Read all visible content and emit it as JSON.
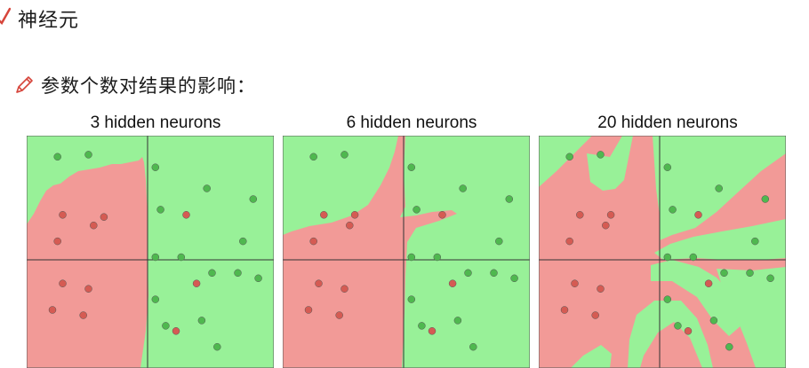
{
  "heading": {
    "title": "神经元"
  },
  "subheading": {
    "text": "参数个数对结果的影响："
  },
  "colors": {
    "red_region": "#f29a97",
    "green_region": "#98f198",
    "red_point": "#d55b53",
    "green_point": "#4fb84f"
  },
  "chart_data": [
    {
      "type": "scatter",
      "title": "3 hidden neurons",
      "red_points": [
        [
          -0.45,
          0.33
        ],
        [
          -0.85,
          0.35
        ],
        [
          -0.55,
          0.25
        ],
        [
          -0.9,
          0.1
        ],
        [
          -0.85,
          -0.3
        ],
        [
          -0.6,
          -0.35
        ],
        [
          -0.95,
          -0.55
        ],
        [
          -0.65,
          -0.6
        ],
        [
          0.35,
          0.35
        ],
        [
          0.45,
          -0.3
        ],
        [
          0.25,
          -0.75
        ]
      ],
      "green_points": [
        [
          -0.9,
          0.9
        ],
        [
          -0.6,
          0.92
        ],
        [
          0.05,
          0.8
        ],
        [
          0.55,
          0.6
        ],
        [
          0.1,
          0.4
        ],
        [
          1.0,
          0.5
        ],
        [
          0.9,
          0.1
        ],
        [
          0.05,
          -0.05
        ],
        [
          0.3,
          -0.05
        ],
        [
          0.6,
          -0.2
        ],
        [
          1.05,
          -0.25
        ],
        [
          0.85,
          -0.2
        ],
        [
          0.05,
          -0.45
        ],
        [
          0.15,
          -0.7
        ],
        [
          0.5,
          -0.65
        ],
        [
          0.65,
          -0.9
        ]
      ]
    },
    {
      "type": "scatter",
      "title": "6 hidden neurons",
      "red_points": [
        [
          -0.5,
          0.35
        ],
        [
          -0.8,
          0.35
        ],
        [
          -0.55,
          0.25
        ],
        [
          -0.9,
          0.1
        ],
        [
          -0.85,
          -0.3
        ],
        [
          -0.6,
          -0.35
        ],
        [
          -0.95,
          -0.55
        ],
        [
          -0.65,
          -0.6
        ],
        [
          0.35,
          0.35
        ],
        [
          0.45,
          -0.3
        ],
        [
          0.25,
          -0.75
        ]
      ],
      "green_points": [
        [
          -0.9,
          0.9
        ],
        [
          -0.6,
          0.92
        ],
        [
          0.05,
          0.8
        ],
        [
          0.55,
          0.6
        ],
        [
          0.1,
          0.4
        ],
        [
          1.0,
          0.5
        ],
        [
          0.9,
          0.1
        ],
        [
          0.05,
          -0.05
        ],
        [
          0.3,
          -0.05
        ],
        [
          0.6,
          -0.2
        ],
        [
          1.05,
          -0.25
        ],
        [
          0.85,
          -0.2
        ],
        [
          0.05,
          -0.45
        ],
        [
          0.15,
          -0.7
        ],
        [
          0.5,
          -0.65
        ],
        [
          0.65,
          -0.9
        ]
      ]
    },
    {
      "type": "scatter",
      "title": "20 hidden neurons",
      "red_points": [
        [
          -0.5,
          0.35
        ],
        [
          -0.8,
          0.35
        ],
        [
          -0.55,
          0.25
        ],
        [
          -0.9,
          0.1
        ],
        [
          -0.85,
          -0.3
        ],
        [
          -0.6,
          -0.35
        ],
        [
          -0.95,
          -0.55
        ],
        [
          -0.65,
          -0.6
        ],
        [
          0.35,
          0.35
        ],
        [
          0.45,
          -0.3
        ],
        [
          0.25,
          -0.75
        ]
      ],
      "green_points": [
        [
          -0.9,
          0.9
        ],
        [
          -0.6,
          0.92
        ],
        [
          0.05,
          0.8
        ],
        [
          0.55,
          0.6
        ],
        [
          0.1,
          0.4
        ],
        [
          1.0,
          0.5
        ],
        [
          0.9,
          0.1
        ],
        [
          0.05,
          -0.05
        ],
        [
          0.3,
          -0.05
        ],
        [
          0.6,
          -0.2
        ],
        [
          1.05,
          -0.25
        ],
        [
          0.85,
          -0.2
        ],
        [
          0.05,
          -0.45
        ],
        [
          0.15,
          -0.7
        ],
        [
          0.5,
          -0.65
        ],
        [
          0.65,
          -0.9
        ]
      ]
    }
  ]
}
